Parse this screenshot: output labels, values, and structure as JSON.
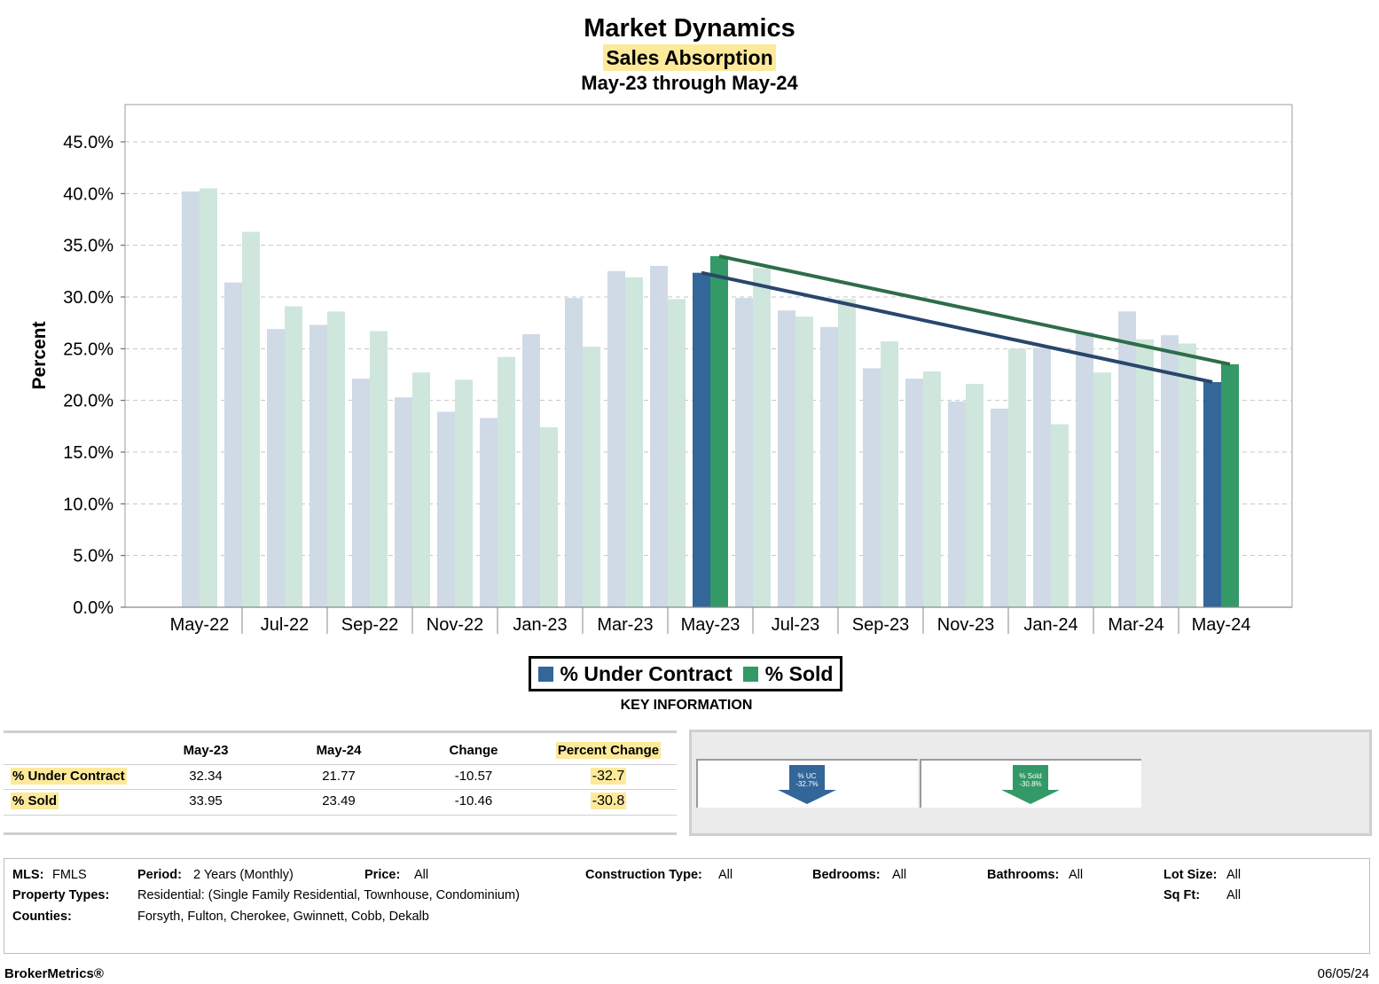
{
  "header": {
    "title": "Market Dynamics",
    "subtitle": "Sales Absorption",
    "date_range": "May-23 through May-24"
  },
  "colors": {
    "under_contract": "#336699",
    "under_contract_faded": "#cfdae6",
    "sold": "#339966",
    "sold_faded": "#cfe6dc",
    "trend_under_contract": "#29466b",
    "trend_sold": "#2e6d49",
    "highlight": "#fde99a"
  },
  "chart_data": {
    "type": "bar",
    "title": "Market Dynamics",
    "ylabel": "Percent",
    "xlabel": "",
    "ylim": [
      0,
      45
    ],
    "y_ticks": [
      "0.0%",
      "5.0%",
      "10.0%",
      "15.0%",
      "20.0%",
      "25.0%",
      "30.0%",
      "35.0%",
      "40.0%",
      "45.0%"
    ],
    "grid": true,
    "legend": "bottom-center",
    "categories": [
      "May-22",
      "Jun-22",
      "Jul-22",
      "Aug-22",
      "Sep-22",
      "Oct-22",
      "Nov-22",
      "Dec-22",
      "Jan-23",
      "Feb-23",
      "Mar-23",
      "Apr-23",
      "May-23",
      "Jun-23",
      "Jul-23",
      "Aug-23",
      "Sep-23",
      "Oct-23",
      "Nov-23",
      "Dec-23",
      "Jan-24",
      "Feb-24",
      "Mar-24",
      "Apr-24",
      "May-24"
    ],
    "x_tick_labels": [
      "May-22",
      "Jul-22",
      "Sep-22",
      "Nov-22",
      "Jan-23",
      "Mar-23",
      "May-23",
      "Jul-23",
      "Sep-23",
      "Nov-23",
      "Jan-24",
      "Mar-24",
      "May-24"
    ],
    "highlighted_period": [
      "May-23",
      "May-24"
    ],
    "series": [
      {
        "name": "% Under Contract",
        "values": [
          40.2,
          31.4,
          26.9,
          27.3,
          22.1,
          20.3,
          18.9,
          18.3,
          26.4,
          29.9,
          32.5,
          33.0,
          32.34,
          29.9,
          28.7,
          27.1,
          23.1,
          22.1,
          19.9,
          19.2,
          25.1,
          26.6,
          28.6,
          26.3,
          21.77
        ]
      },
      {
        "name": "% Sold",
        "values": [
          40.5,
          36.3,
          29.1,
          28.6,
          26.7,
          22.7,
          22.0,
          24.2,
          17.4,
          25.2,
          31.9,
          29.8,
          33.95,
          32.8,
          28.1,
          29.8,
          25.7,
          22.8,
          21.6,
          25.0,
          17.7,
          22.7,
          25.9,
          25.5,
          23.49
        ]
      }
    ]
  },
  "legend": {
    "under_contract_label": "% Under Contract",
    "sold_label": "% Sold"
  },
  "key_info": {
    "title": "KEY INFORMATION",
    "columns": [
      "May-23",
      "May-24",
      "Change",
      "Percent Change"
    ],
    "rows": [
      {
        "label": "% Under Contract",
        "start": "32.34",
        "end": "21.77",
        "change": "-10.57",
        "pct_change": "-32.7"
      },
      {
        "label": "% Sold",
        "start": "33.95",
        "end": "23.49",
        "change": "-10.46",
        "pct_change": "-30.8"
      }
    ]
  },
  "indicators": {
    "under_contract": {
      "line1": "% UC",
      "line2": "-32.7%",
      "icon": "arrow-down-icon"
    },
    "sold": {
      "line1": "% Sold",
      "line2": "-30.8%",
      "icon": "arrow-down-icon"
    }
  },
  "parameters": {
    "mls_label": "MLS:",
    "mls_value": "FMLS",
    "period_label": "Period:",
    "period_value": "2 Years (Monthly)",
    "price_label": "Price:",
    "price_value": "All",
    "construction_label": "Construction Type:",
    "construction_value": "All",
    "bedrooms_label": "Bedrooms:",
    "bedrooms_value": "All",
    "bathrooms_label": "Bathrooms:",
    "bathrooms_value": "All",
    "lot_size_label": "Lot Size:",
    "lot_size_value": "All",
    "property_types_label": "Property Types:",
    "property_types_value": "Residential: (Single Family Residential, Townhouse, Condominium)",
    "sqft_label": "Sq Ft:",
    "sqft_value": "All",
    "counties_label": "Counties:",
    "counties_value": "Forsyth, Fulton, Cherokee, Gwinnett, Cobb, Dekalb"
  },
  "footer": {
    "brand": "BrokerMetrics®",
    "date": "06/05/24"
  }
}
